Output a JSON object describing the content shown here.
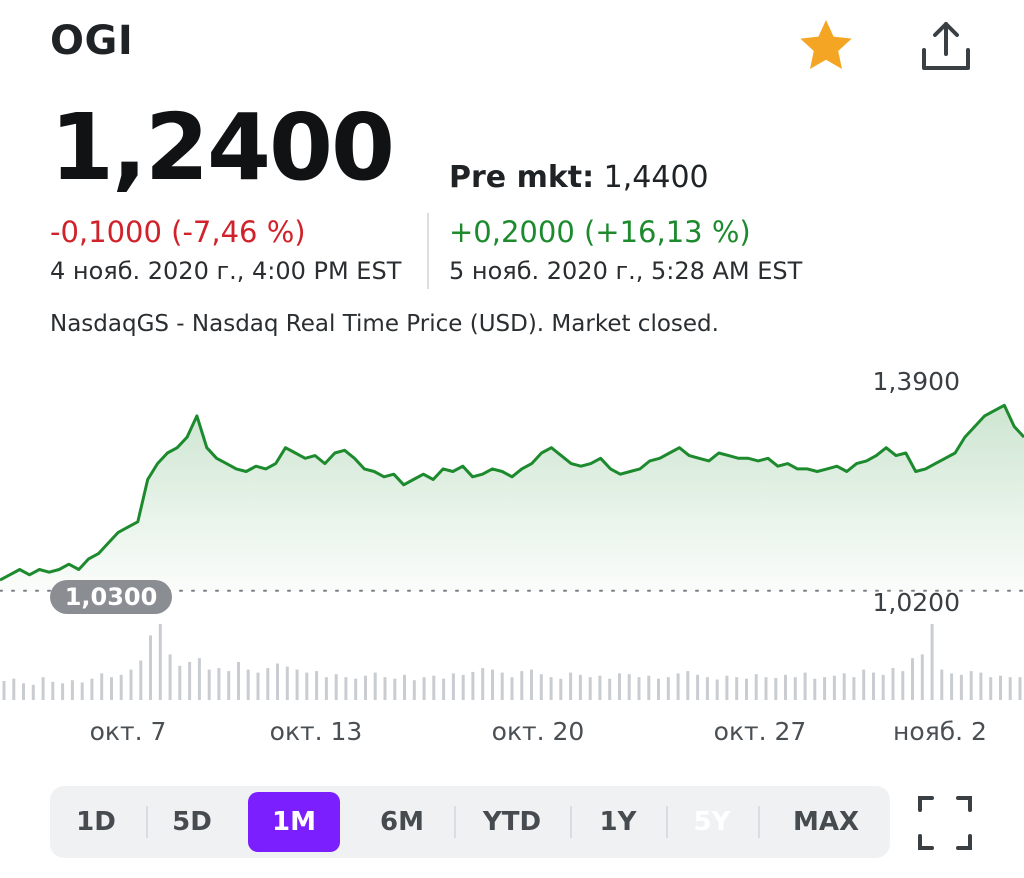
{
  "header": {
    "ticker": "OGI",
    "favorite_icon": "star-icon",
    "favorite_color": "#f5a524",
    "share_icon": "share-icon"
  },
  "quote": {
    "price": "1,2400",
    "change": "-0,1000 (-7,46 %)",
    "change_color": "#d0222a",
    "timestamp": "4 нояб. 2020 г., 4:00 PM EST",
    "premarket_label": "Pre mkt:",
    "premarket_price": "1,4400",
    "premarket_change": "+0,2000 (+16,13 %)",
    "premarket_change_color": "#1d8a2e",
    "premarket_timestamp": "5 нояб. 2020 г., 5:28 AM EST",
    "market_info": "NasdaqGS - Nasdaq Real Time Price (USD). Market closed."
  },
  "chart_data": {
    "type": "area",
    "color": "#1d8a2e",
    "ylim": [
      1.02,
      1.39
    ],
    "y_labels": [
      "1,3900",
      "1,0200"
    ],
    "previous_close": 1.03,
    "previous_close_label": "1,0300",
    "x_ticks": [
      "окт. 7",
      "окт. 13",
      "окт. 20",
      "окт. 27",
      "нояб. 2"
    ],
    "prices": [
      1.05,
      1.06,
      1.07,
      1.06,
      1.07,
      1.065,
      1.07,
      1.08,
      1.07,
      1.09,
      1.1,
      1.12,
      1.14,
      1.15,
      1.16,
      1.24,
      1.27,
      1.29,
      1.3,
      1.32,
      1.36,
      1.3,
      1.28,
      1.27,
      1.26,
      1.255,
      1.265,
      1.26,
      1.27,
      1.3,
      1.29,
      1.28,
      1.285,
      1.27,
      1.29,
      1.295,
      1.28,
      1.26,
      1.255,
      1.245,
      1.25,
      1.23,
      1.24,
      1.25,
      1.24,
      1.26,
      1.255,
      1.265,
      1.245,
      1.25,
      1.26,
      1.255,
      1.245,
      1.26,
      1.27,
      1.29,
      1.3,
      1.285,
      1.27,
      1.265,
      1.27,
      1.28,
      1.26,
      1.25,
      1.255,
      1.26,
      1.275,
      1.28,
      1.29,
      1.3,
      1.285,
      1.28,
      1.275,
      1.29,
      1.285,
      1.28,
      1.28,
      1.275,
      1.28,
      1.265,
      1.27,
      1.26,
      1.26,
      1.255,
      1.26,
      1.265,
      1.255,
      1.27,
      1.275,
      1.285,
      1.3,
      1.285,
      1.29,
      1.255,
      1.26,
      1.27,
      1.28,
      1.29,
      1.32,
      1.34,
      1.36,
      1.37,
      1.38,
      1.34,
      1.32
    ],
    "volumes": [
      0.25,
      0.28,
      0.22,
      0.2,
      0.3,
      0.24,
      0.22,
      0.26,
      0.23,
      0.28,
      0.35,
      0.3,
      0.33,
      0.4,
      0.52,
      0.85,
      1.0,
      0.6,
      0.45,
      0.5,
      0.55,
      0.4,
      0.42,
      0.38,
      0.5,
      0.4,
      0.36,
      0.42,
      0.48,
      0.44,
      0.4,
      0.36,
      0.38,
      0.3,
      0.34,
      0.3,
      0.28,
      0.32,
      0.36,
      0.3,
      0.28,
      0.33,
      0.26,
      0.3,
      0.32,
      0.28,
      0.35,
      0.33,
      0.37,
      0.42,
      0.4,
      0.36,
      0.3,
      0.38,
      0.4,
      0.34,
      0.3,
      0.28,
      0.36,
      0.33,
      0.3,
      0.32,
      0.28,
      0.35,
      0.34,
      0.3,
      0.32,
      0.28,
      0.3,
      0.35,
      0.38,
      0.33,
      0.3,
      0.27,
      0.32,
      0.3,
      0.28,
      0.34,
      0.3,
      0.29,
      0.33,
      0.3,
      0.36,
      0.28,
      0.3,
      0.32,
      0.35,
      0.3,
      0.4,
      0.36,
      0.33,
      0.42,
      0.38,
      0.55,
      0.6,
      1.0,
      0.4,
      0.35,
      0.33,
      0.38,
      0.36,
      0.3,
      0.32,
      0.3,
      0.3
    ]
  },
  "ranges": {
    "items": [
      "1D",
      "5D",
      "1M",
      "6M",
      "YTD",
      "1Y",
      "5Y",
      "MAX"
    ],
    "active": "1M",
    "accent": "#7b1fff"
  },
  "controls": {
    "expand_icon": "expand-icon"
  }
}
